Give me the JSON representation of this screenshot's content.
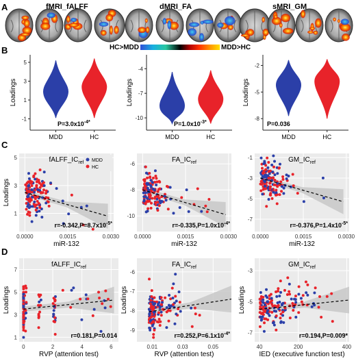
{
  "panels": {
    "A": "A",
    "B": "B",
    "C": "C",
    "D": "D"
  },
  "row_a": {
    "titles": [
      "fMRI_fALFF",
      "dMRI_FA",
      "sMRI_GM"
    ],
    "colorbar": {
      "left_label": "HC>MDD",
      "right_label": "MDD>HC",
      "stops": [
        "#2f4fd8",
        "#18b0e0",
        "#28c8a0",
        "#000000",
        "#b00000",
        "#ff3000",
        "#ff9000",
        "#ffe000"
      ]
    }
  },
  "colors": {
    "mdd": "#2b3fa8",
    "hc": "#e8232a",
    "bg": "#ebebeb",
    "grid": "#ffffff",
    "ci": "#c8c8c8"
  },
  "chart_data": [
    {
      "id": "B1",
      "type": "violin",
      "ylabel": "Loadings",
      "categories": [
        "MDD",
        "HC"
      ],
      "yticks": [
        -1,
        1,
        3,
        5
      ],
      "ylim": [
        -2.2,
        5.8
      ],
      "series": [
        {
          "name": "MDD",
          "median": 1.9,
          "min": -0.9,
          "max": 5.2
        },
        {
          "name": "HC",
          "median": 2.4,
          "min": -0.9,
          "max": 5.4
        }
      ],
      "stat": "P=3.0x10",
      "stat_exp": "-4*"
    },
    {
      "id": "B2",
      "type": "violin",
      "ylabel": "Loadings",
      "categories": [
        "MDD",
        "HC"
      ],
      "yticks": [
        -10,
        -7,
        -4
      ],
      "ylim": [
        -11.5,
        -2.3
      ],
      "series": [
        {
          "name": "MDD",
          "median": -8.5,
          "min": -10.7,
          "max": -4.4
        },
        {
          "name": "HC",
          "median": -7.7,
          "min": -10.7,
          "max": -4.2
        }
      ],
      "stat": "P=1.0x10",
      "stat_exp": "-3*"
    },
    {
      "id": "B3",
      "type": "violin",
      "ylabel": "Loadings",
      "categories": [
        "MDD",
        "HC"
      ],
      "yticks": [
        -8,
        -5,
        -2
      ],
      "ylim": [
        -9.3,
        -0.8
      ],
      "series": [
        {
          "name": "MDD",
          "median": -4.2,
          "min": -7.7,
          "max": -1.4
        },
        {
          "name": "HC",
          "median": -3.8,
          "min": -8.0,
          "max": -1.3
        }
      ],
      "stat": "P=0.036",
      "stat_exp": ""
    },
    {
      "id": "C1",
      "type": "scatter",
      "title": "fALFF_IC",
      "title_sub": "ref",
      "xlabel": "miR-132",
      "ylabel": "Loadings",
      "xticks": [
        "0.0000",
        "0.0015",
        "0.0030"
      ],
      "xtick_vals": [
        0,
        0.0015,
        0.003
      ],
      "xlim": [
        -0.0002,
        0.0031
      ],
      "yticks": [
        1,
        3,
        5
      ],
      "ylim": [
        -0.3,
        5.3
      ],
      "fit": {
        "x0": 0.0,
        "y0": 2.5,
        "x1": 0.0029,
        "y1": 0.8
      },
      "legend": [
        "MDD",
        "HC"
      ],
      "stat": "r=-0.342,P=8.7x10",
      "stat_exp": "-5*"
    },
    {
      "id": "C2",
      "type": "scatter",
      "title": "FA_IC",
      "title_sub": "ref",
      "xlabel": "miR-132",
      "ylabel": "",
      "xticks": [
        "0.0000",
        "0.0015",
        "0.0030"
      ],
      "xtick_vals": [
        0,
        0.0015,
        0.003
      ],
      "xlim": [
        -0.0002,
        0.0031
      ],
      "yticks": [
        -10,
        -8,
        -6
      ],
      "ylim": [
        -11.2,
        -5.2
      ],
      "fit": {
        "x0": 0.0,
        "y0": -8.0,
        "x1": 0.0029,
        "y1": -9.9
      },
      "stat": "r=-0.335,P=1.0x10",
      "stat_exp": "-4*"
    },
    {
      "id": "C3",
      "type": "scatter",
      "title": "GM_IC",
      "title_sub": "ref",
      "xlabel": "miR-132",
      "ylabel": "",
      "xticks": [
        "0.0000",
        "0.0015",
        "0.0030"
      ],
      "xtick_vals": [
        0,
        0.0015,
        0.003
      ],
      "xlim": [
        -0.0002,
        0.0031
      ],
      "yticks": [
        -7,
        -5,
        -3,
        -1
      ],
      "ylim": [
        -8.2,
        -0.6
      ],
      "fit": {
        "x0": 0.0,
        "y0": -3.0,
        "x1": 0.0029,
        "y1": -5.3
      },
      "stat": "r=-0.376,P=1.4x10",
      "stat_exp": "-5*"
    },
    {
      "id": "D1",
      "type": "scatter",
      "title": "fALFF_IC",
      "title_sub": "ref",
      "xlabel": "RVP (attention test)",
      "ylabel": "Loadings",
      "xticks": [
        "0",
        "2",
        "4",
        "6"
      ],
      "xtick_vals": [
        0,
        2,
        4,
        6
      ],
      "xlim": [
        -0.3,
        6.5
      ],
      "yticks": [
        1,
        3,
        5,
        7
      ],
      "ylim": [
        0.6,
        8.0
      ],
      "fit": {
        "x0": 0.0,
        "y0": 3.5,
        "x1": 6.2,
        "y1": 4.3
      },
      "stat": "r=0.181,P=0.014",
      "stat_exp": ""
    },
    {
      "id": "D2",
      "type": "scatter",
      "title": "FA_IC",
      "title_sub": "ref",
      "xlabel": "RVP (attention test)",
      "ylabel": "Loadings",
      "xticks": [
        "0.01",
        "0.03",
        "0.05"
      ],
      "xtick_vals": [
        0.01,
        0.03,
        0.05
      ],
      "xlim": [
        0.0,
        0.062
      ],
      "yticks": [
        -9,
        -8,
        -7,
        -6
      ],
      "ylim": [
        -9.6,
        -5.3
      ],
      "fit": {
        "x0": 0.008,
        "y0": -8.05,
        "x1": 0.062,
        "y1": -7.4
      },
      "stat": "r=0.252,P=6.1x10",
      "stat_exp": "-4*"
    },
    {
      "id": "D3",
      "type": "scatter",
      "title": "GM_IC",
      "title_sub": "ref",
      "xlabel": "IED (executive function test)",
      "ylabel": "Loadings",
      "xticks": [
        "40",
        "200",
        "400"
      ],
      "xtick_vals": [
        40,
        200,
        400
      ],
      "xlim": [
        20,
        410
      ],
      "yticks": [
        -7,
        -5,
        -3
      ],
      "ylim": [
        -7.6,
        -2.2
      ],
      "fit": {
        "x0": 40,
        "y0": -5.5,
        "x1": 410,
        "y1": -4.9
      },
      "stat": "r=0.194,P=0.009*",
      "stat_exp": ""
    }
  ]
}
